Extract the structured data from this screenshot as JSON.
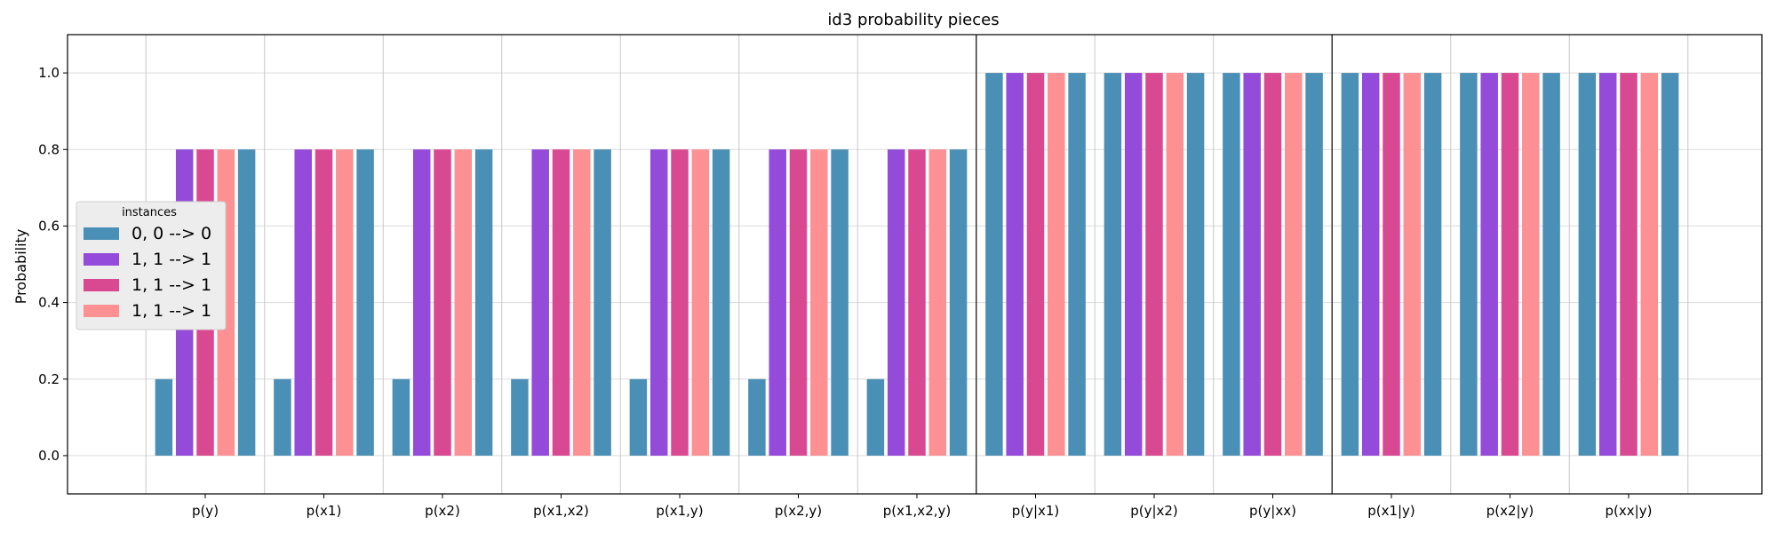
{
  "chart_data": {
    "type": "bar",
    "title": "id3 probability pieces",
    "xlabel": "",
    "ylabel": "Probability",
    "ylim": [
      -0.1,
      1.1
    ],
    "yticks": [
      "0.0",
      "0.2",
      "0.4",
      "0.6",
      "0.8",
      "1.0"
    ],
    "grid": true,
    "legend_title": "instances",
    "legend_position": "center-left",
    "categories": [
      "p(y)",
      "p(x1)",
      "p(x2)",
      "p(x1,x2)",
      "p(x1,y)",
      "p(x2,y)",
      "p(x1,x2,y)",
      "p(y|x1)",
      "p(y|x2)",
      "p(y|xx)",
      "p(x1|y)",
      "p(x2|y)",
      "p(xx|y)"
    ],
    "separators_after": [
      "p(x1,x2,y)",
      "p(y|xx)"
    ],
    "series": [
      {
        "name": "0, 0 --> 0",
        "color": "#4a8fb5",
        "values": [
          0.2,
          0.2,
          0.2,
          0.2,
          0.2,
          0.2,
          0.2,
          1.0,
          1.0,
          1.0,
          1.0,
          1.0,
          1.0
        ]
      },
      {
        "name": "1, 1 --> 1",
        "color": "#944bda",
        "values": [
          0.8,
          0.8,
          0.8,
          0.8,
          0.8,
          0.8,
          0.8,
          1.0,
          1.0,
          1.0,
          1.0,
          1.0,
          1.0
        ]
      },
      {
        "name": "1, 1 --> 1",
        "color": "#d94992",
        "values": [
          0.8,
          0.8,
          0.8,
          0.8,
          0.8,
          0.8,
          0.8,
          1.0,
          1.0,
          1.0,
          1.0,
          1.0,
          1.0
        ]
      },
      {
        "name": "1, 1 --> 1",
        "color": "#fc9092",
        "values": [
          0.8,
          0.8,
          0.8,
          0.8,
          0.8,
          0.8,
          0.8,
          1.0,
          1.0,
          1.0,
          1.0,
          1.0,
          1.0
        ]
      },
      {
        "name": "",
        "color": "#4a8fb5",
        "values": [
          0.8,
          0.8,
          0.8,
          0.8,
          0.8,
          0.8,
          0.8,
          1.0,
          1.0,
          1.0,
          1.0,
          1.0,
          1.0
        ]
      }
    ]
  }
}
